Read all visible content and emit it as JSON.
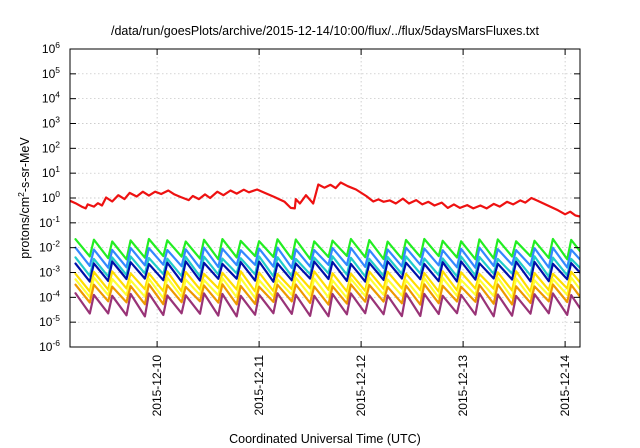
{
  "chart_data": {
    "type": "line",
    "title": "/data/run/goesPlots/archive/2015-12-14/10:00/flux/../flux/5daysMarsFluxes.txt",
    "xlabel": "Coordinated Universal Time (UTC)",
    "ylabel": {
      "base": "protons/cm",
      "exp": "2",
      "rest": "-s-sr-MeV"
    },
    "yscale": "log",
    "ylim_exp": [
      -6,
      6
    ],
    "yticks": [
      {
        "base": "10",
        "exp": "-6",
        "e": -6
      },
      {
        "base": "10",
        "exp": "-5",
        "e": -5
      },
      {
        "base": "10",
        "exp": "-4",
        "e": -4
      },
      {
        "base": "10",
        "exp": "-3",
        "e": -3
      },
      {
        "base": "10",
        "exp": "-2",
        "e": -2
      },
      {
        "base": "10",
        "exp": "-1",
        "e": -1
      },
      {
        "base": "10",
        "exp": "0",
        "e": 0
      },
      {
        "base": "10",
        "exp": "1",
        "e": 1
      },
      {
        "base": "10",
        "exp": "2",
        "e": 2
      },
      {
        "base": "10",
        "exp": "3",
        "e": 3
      },
      {
        "base": "10",
        "exp": "4",
        "e": 4
      },
      {
        "base": "10",
        "exp": "5",
        "e": 5
      },
      {
        "base": "10",
        "exp": "6",
        "e": 6
      }
    ],
    "xrange_days": [
      "2015-12-09 03:30",
      "2015-12-14 10:00"
    ],
    "xticks": [
      {
        "label": "2015-12-10",
        "day": 1
      },
      {
        "label": "2015-12-11",
        "day": 2
      },
      {
        "label": "2015-12-12",
        "day": 3
      },
      {
        "label": "2015-12-13",
        "day": 4
      },
      {
        "label": "2015-12-14",
        "day": 5
      }
    ],
    "grid": true,
    "series": [
      {
        "color": "#ee1111",
        "sawtooth": false,
        "points": [
          [
            -0.854,
            0.77
          ],
          [
            -0.8,
            0.62
          ],
          [
            -0.74,
            0.45
          ],
          [
            -0.7,
            0.38
          ],
          [
            -0.68,
            0.55
          ],
          [
            -0.62,
            0.45
          ],
          [
            -0.58,
            0.62
          ],
          [
            -0.54,
            0.5
          ],
          [
            -0.5,
            1.05
          ],
          [
            -0.44,
            0.72
          ],
          [
            -0.38,
            1.3
          ],
          [
            -0.32,
            0.9
          ],
          [
            -0.27,
            1.6
          ],
          [
            -0.2,
            1.15
          ],
          [
            -0.14,
            1.8
          ],
          [
            -0.08,
            1.25
          ],
          [
            -0.02,
            1.8
          ],
          [
            0.04,
            1.45
          ],
          [
            0.11,
            2.0
          ],
          [
            0.17,
            1.4
          ],
          [
            0.23,
            1.1
          ],
          [
            0.31,
            0.82
          ],
          [
            0.35,
            1.2
          ],
          [
            0.41,
            0.9
          ],
          [
            0.47,
            1.4
          ],
          [
            0.52,
            1.0
          ],
          [
            0.59,
            1.8
          ],
          [
            0.65,
            1.3
          ],
          [
            0.72,
            2.0
          ],
          [
            0.78,
            1.5
          ],
          [
            0.85,
            2.15
          ],
          [
            0.9,
            1.7
          ],
          [
            0.98,
            2.2
          ],
          [
            1.05,
            1.65
          ],
          [
            1.15,
            1.1
          ],
          [
            1.25,
            0.7
          ],
          [
            1.31,
            0.4
          ],
          [
            1.35,
            0.38
          ],
          [
            1.36,
            0.9
          ],
          [
            1.4,
            0.6
          ],
          [
            1.46,
            1.3
          ],
          [
            1.53,
            0.6
          ],
          [
            1.58,
            3.5
          ],
          [
            1.64,
            2.6
          ],
          [
            1.7,
            3.4
          ],
          [
            1.75,
            2.5
          ],
          [
            1.8,
            4.2
          ],
          [
            1.87,
            3.0
          ],
          [
            1.95,
            2.2
          ],
          [
            2.05,
            1.2
          ],
          [
            2.12,
            0.72
          ],
          [
            2.17,
            0.88
          ],
          [
            2.22,
            0.7
          ],
          [
            2.28,
            0.8
          ],
          [
            2.34,
            0.6
          ],
          [
            2.41,
            0.95
          ],
          [
            2.47,
            0.6
          ],
          [
            2.54,
            0.82
          ],
          [
            2.6,
            0.55
          ],
          [
            2.66,
            0.7
          ],
          [
            2.72,
            0.5
          ],
          [
            2.79,
            0.65
          ],
          [
            2.85,
            0.4
          ],
          [
            2.91,
            0.55
          ],
          [
            2.97,
            0.4
          ],
          [
            3.04,
            0.52
          ],
          [
            3.1,
            0.38
          ],
          [
            3.17,
            0.5
          ],
          [
            3.23,
            0.38
          ],
          [
            3.3,
            0.58
          ],
          [
            3.36,
            0.45
          ],
          [
            3.43,
            0.7
          ],
          [
            3.49,
            0.55
          ],
          [
            3.56,
            0.8
          ],
          [
            3.61,
            0.65
          ],
          [
            3.67,
            1.0
          ],
          [
            3.73,
            0.78
          ],
          [
            3.83,
            0.5
          ],
          [
            3.93,
            0.32
          ],
          [
            4.0,
            0.22
          ],
          [
            4.05,
            0.28
          ],
          [
            4.1,
            0.2
          ],
          [
            4.146,
            0.18
          ]
        ]
      },
      {
        "color": "#22ee22",
        "sawtooth": true,
        "hi": 0.02,
        "lo": 0.004
      },
      {
        "color": "#3388ff",
        "sawtooth": true,
        "hi": 0.009,
        "lo": 0.0018
      },
      {
        "color": "#22cccc",
        "sawtooth": true,
        "hi": 0.004,
        "lo": 0.0008
      },
      {
        "color": "#0011aa",
        "sawtooth": true,
        "hi": 0.0025,
        "lo": 0.0005
      },
      {
        "color": "#ffdd00",
        "sawtooth": true,
        "hi": 0.001,
        "lo": 0.0002
      },
      {
        "color": "#ffff33",
        "sawtooth": true,
        "hi": 0.00055,
        "lo": 0.00011
      },
      {
        "color": "#ee9900",
        "sawtooth": true,
        "hi": 0.0003,
        "lo": 6e-05
      },
      {
        "color": "#993377",
        "sawtooth": true,
        "hi": 0.00013,
        "lo": 2e-05
      }
    ]
  }
}
